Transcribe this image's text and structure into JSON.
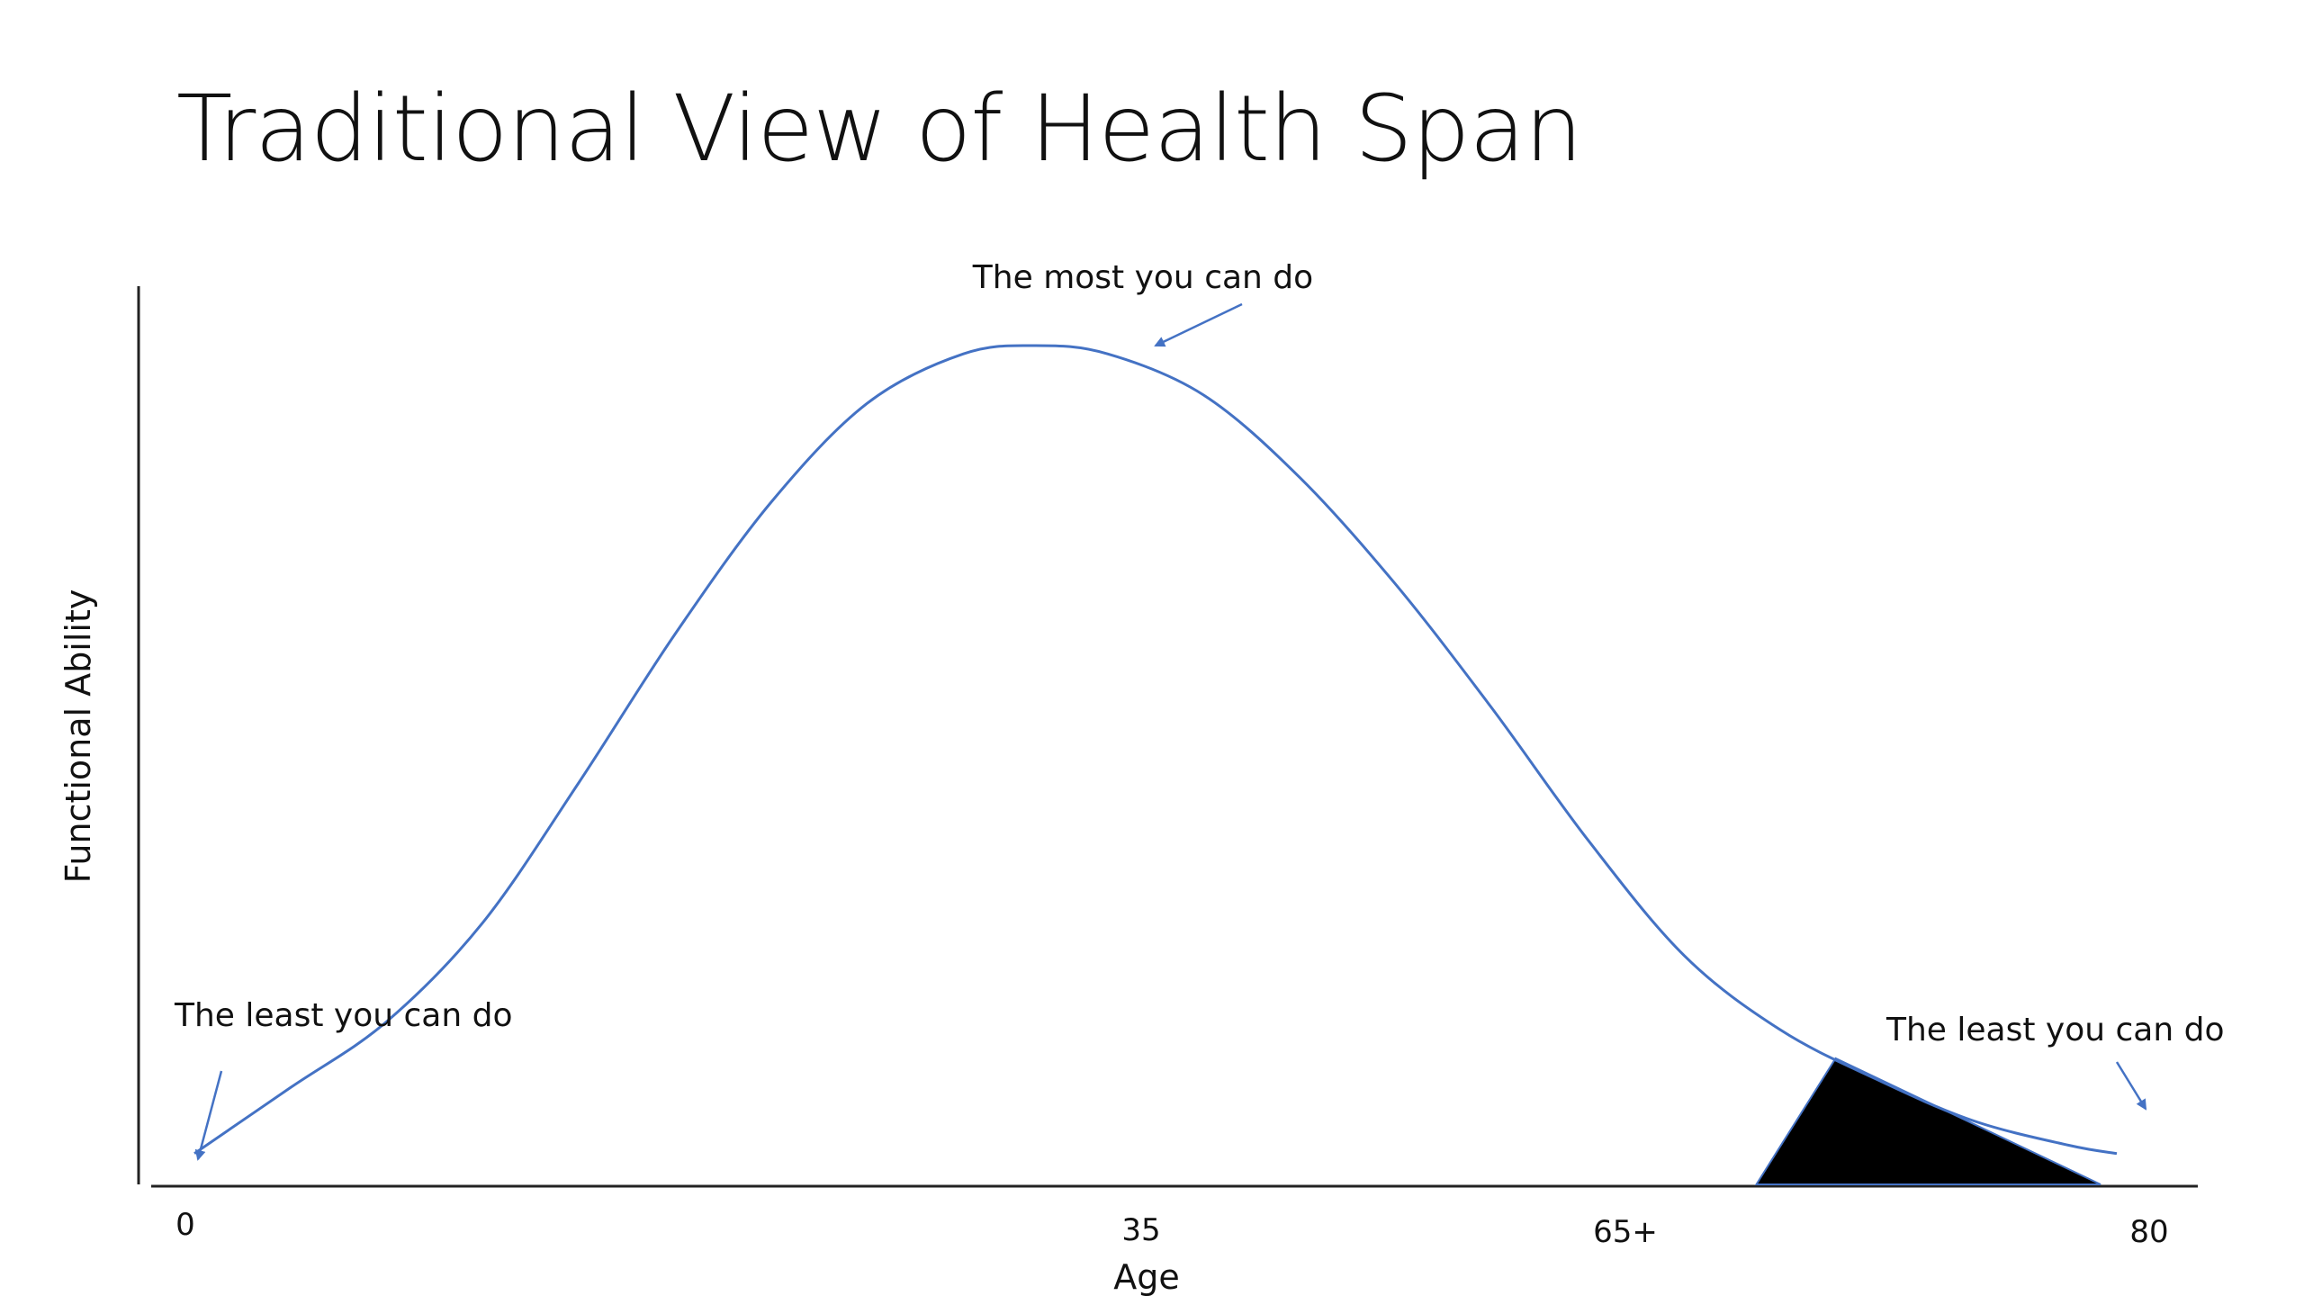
{
  "slide": {
    "title": "Traditional View of Health Span"
  },
  "colors": {
    "curve": "#4472C4",
    "arrow": "#4472C4",
    "wedge": "#000000",
    "axis": "#222222"
  },
  "chart_data": {
    "type": "line",
    "title": "",
    "xlabel": "Age",
    "ylabel": "Functional Ability",
    "x_ticks": [
      {
        "value": 0,
        "label": "0"
      },
      {
        "value": 35,
        "label": "35"
      },
      {
        "value": 65,
        "label": "65+"
      },
      {
        "value": 80,
        "label": "80"
      }
    ],
    "xlim": [
      0,
      80
    ],
    "ylim": [
      0,
      100
    ],
    "grid": false,
    "series": [
      {
        "x": [
          0,
          4,
          8,
          12,
          16,
          20,
          24,
          28,
          32,
          35,
          38,
          42,
          46,
          50,
          54,
          58,
          62,
          66,
          70,
          74,
          78,
          80
        ],
        "y": [
          2,
          10,
          18,
          30,
          47,
          65,
          81,
          93,
          99,
          100,
          99,
          94,
          84,
          71,
          56,
          40,
          26,
          17,
          11,
          6,
          3,
          2
        ]
      }
    ],
    "highlight_region": {
      "x_start": 65,
      "x_end": 80
    },
    "annotations": [
      {
        "text": "The most you can do",
        "points_to": {
          "x": 35,
          "y": 100
        }
      },
      {
        "text": "The least you can do",
        "points_to": {
          "x": 0,
          "y": 2
        }
      },
      {
        "text": "The least you can do",
        "points_to": {
          "x": 80,
          "y": 2
        }
      }
    ]
  }
}
